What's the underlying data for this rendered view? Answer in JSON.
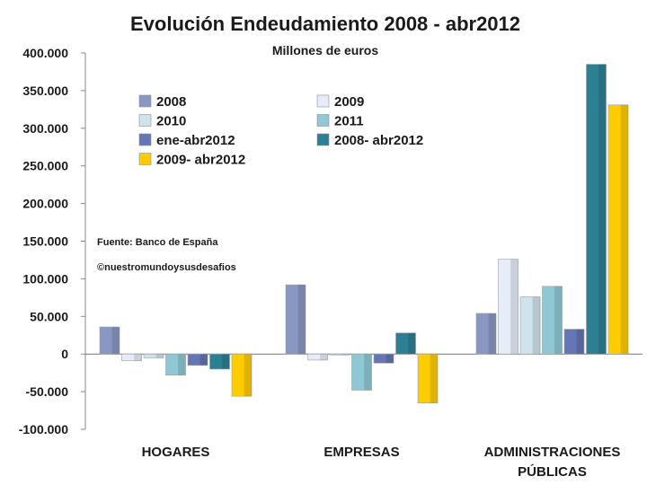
{
  "chart_data": {
    "type": "bar",
    "title": "Evolución Endeudamiento 2008 - abr2012",
    "subtitle": "Millones de euros",
    "categories": [
      "HOGARES",
      "EMPRESAS",
      "ADMINISTRACIONES PÚBLICAS"
    ],
    "category_lines": [
      [
        "HOGARES"
      ],
      [
        "EMPRESAS"
      ],
      [
        "ADMINISTRACIONES",
        "PÚBLICAS"
      ]
    ],
    "ylim": [
      -100000,
      400000
    ],
    "yticks": [
      400000,
      350000,
      300000,
      250000,
      200000,
      150000,
      100000,
      50000,
      0,
      -50000,
      -100000
    ],
    "ytick_labels": [
      "400.000",
      "350.000",
      "300.000",
      "250.000",
      "200.000",
      "150.000",
      "100.000",
      "50.000",
      "0",
      "-50.000",
      "-100.000"
    ],
    "grid": false,
    "legend_position": "top-left",
    "series": [
      {
        "name": "2008",
        "color": "#8a97c2",
        "values": [
          36000,
          92000,
          54000
        ]
      },
      {
        "name": "2009",
        "color": "#e6edf8",
        "values": [
          -9000,
          -8000,
          126000
        ]
      },
      {
        "name": "2010",
        "color": "#cfe3ec",
        "values": [
          -5000,
          -1000,
          76000
        ]
      },
      {
        "name": "2011",
        "color": "#8fc8d4",
        "values": [
          -28000,
          -48000,
          90000
        ]
      },
      {
        "name": "ene-abr2012",
        "color": "#6675b3",
        "values": [
          -15000,
          -12000,
          33000
        ]
      },
      {
        "name": "2008- abr2012",
        "color": "#2d7f94",
        "values": [
          -20000,
          28000,
          385000
        ]
      },
      {
        "name": "2009- abr2012",
        "color": "#ffcc00",
        "values": [
          -56000,
          -65000,
          331000
        ]
      }
    ],
    "annotations": [
      "Fuente: Banco de España",
      "©nuestromundoysusdesafios"
    ]
  }
}
